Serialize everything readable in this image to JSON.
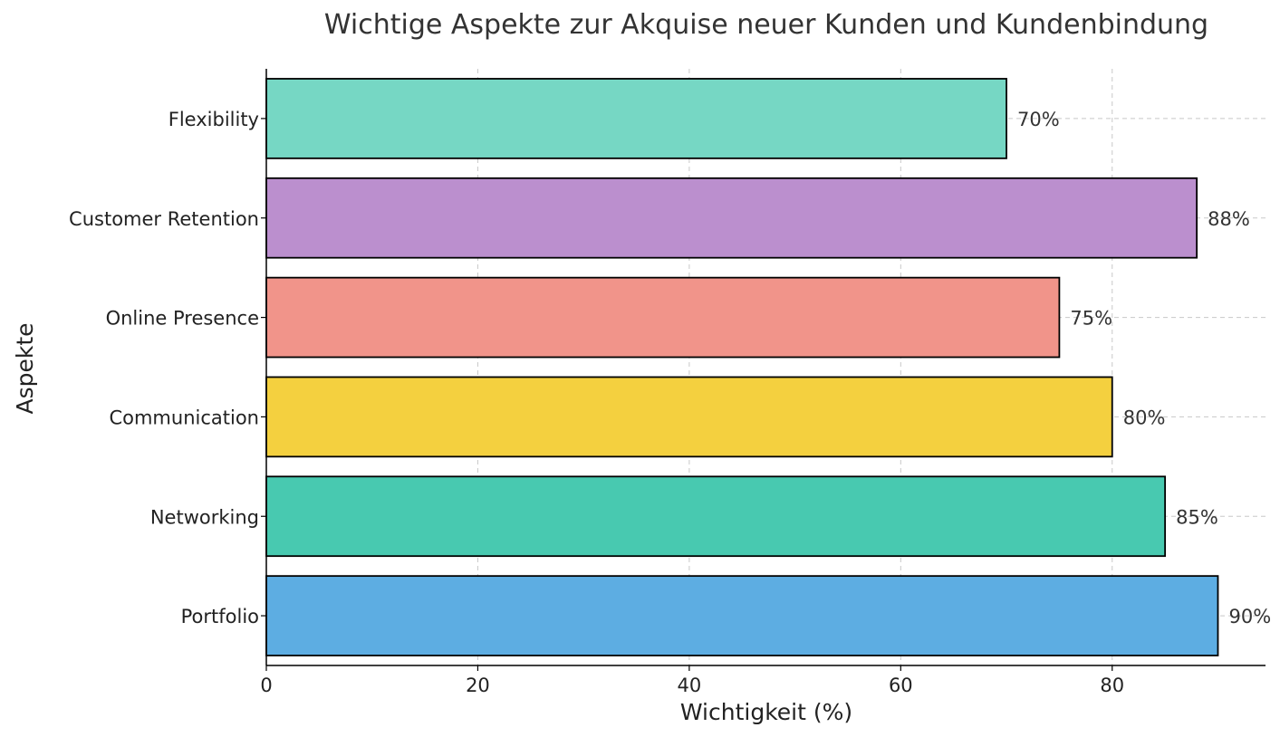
{
  "chart_data": {
    "type": "bar",
    "orientation": "horizontal",
    "title": "Wichtige Aspekte zur Akquise neuer Kunden und Kundenbindung",
    "xlabel": "Wichtigkeit (%)",
    "ylabel": "Aspekte",
    "categories": [
      "Portfolio",
      "Networking",
      "Communication",
      "Online Presence",
      "Customer Retention",
      "Flexibility"
    ],
    "values": [
      90,
      85,
      80,
      75,
      88,
      70
    ],
    "value_labels": [
      "90%",
      "85%",
      "80%",
      "75%",
      "88%",
      "70%"
    ],
    "colors": [
      "#5DADE2",
      "#48C9B0",
      "#F4D03F",
      "#F1948A",
      "#BB8FCE",
      "#76D7C4"
    ],
    "xlim": [
      0,
      94.5
    ],
    "xticks": [
      0,
      20,
      40,
      60,
      80
    ],
    "xtick_labels": [
      "0",
      "20",
      "40",
      "60",
      "80"
    ],
    "grid": true,
    "legend": "none"
  }
}
